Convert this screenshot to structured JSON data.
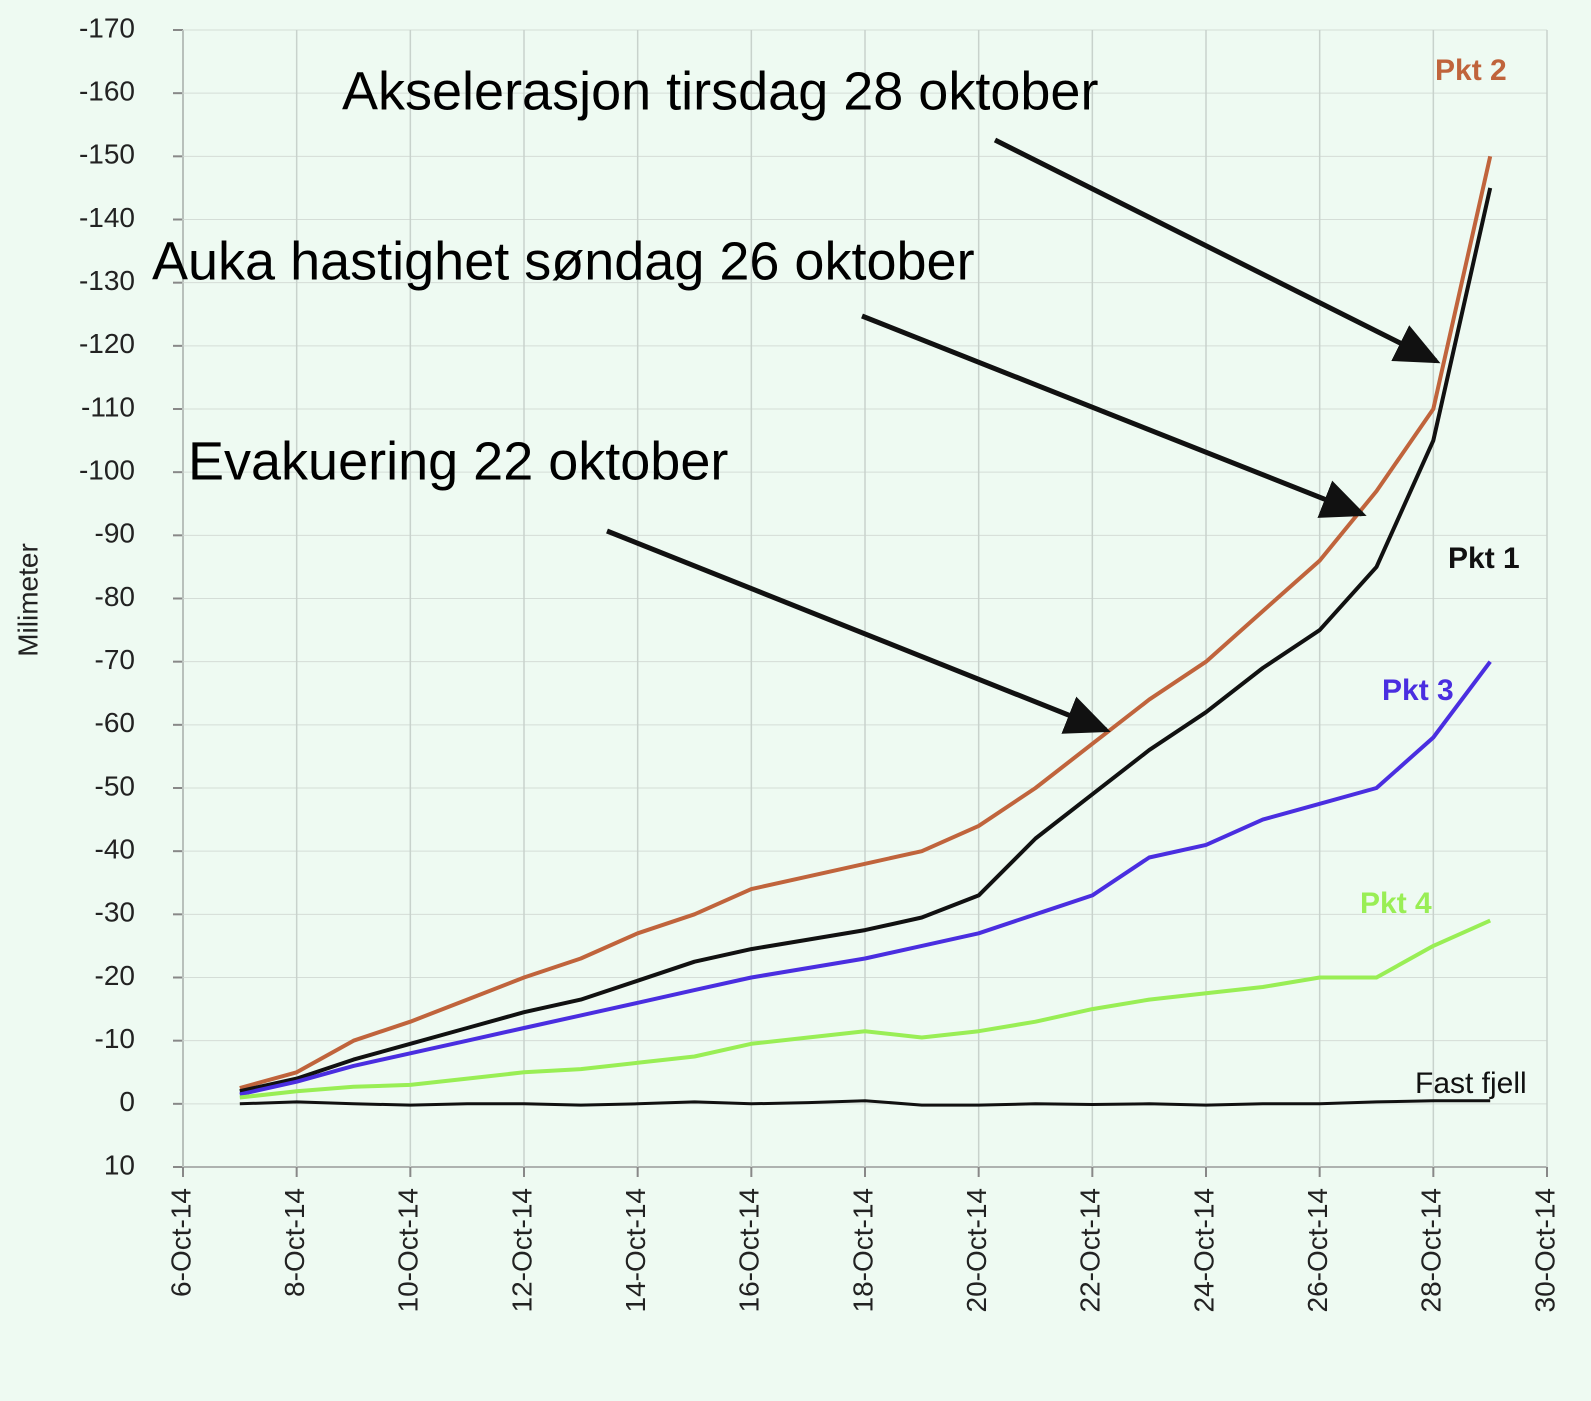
{
  "chart_data": {
    "type": "line",
    "y_label": "Milimeter",
    "x": [
      "2014-10-07",
      "2014-10-08",
      "2014-10-09",
      "2014-10-10",
      "2014-10-11",
      "2014-10-12",
      "2014-10-13",
      "2014-10-14",
      "2014-10-15",
      "2014-10-16",
      "2014-10-17",
      "2014-10-18",
      "2014-10-19",
      "2014-10-20",
      "2014-10-21",
      "2014-10-22",
      "2014-10-23",
      "2014-10-24",
      "2014-10-25",
      "2014-10-26",
      "2014-10-27",
      "2014-10-28",
      "2014-10-29"
    ],
    "series": [
      {
        "name": "Pkt 2",
        "color": "#c0643c",
        "values": [
          -2.5,
          -5,
          -10,
          -13,
          -16.5,
          -20,
          -23,
          -27,
          -30,
          -34,
          -36,
          -38,
          -40,
          -44,
          -50,
          -57,
          -64,
          -70,
          -78,
          -86,
          -97,
          -110,
          -150
        ]
      },
      {
        "name": "Pkt 1",
        "color": "#111111",
        "values": [
          -2,
          -4,
          -7,
          -9.5,
          -12,
          -14.5,
          -16.5,
          -19.5,
          -22.5,
          -24.5,
          -26,
          -27.5,
          -29.5,
          -33,
          -42,
          -49,
          -56,
          -62,
          -69,
          -75,
          -85,
          -105,
          -145
        ]
      },
      {
        "name": "Pkt 3",
        "color": "#4a2ee0",
        "values": [
          -1.5,
          -3.5,
          -6,
          -8,
          -10,
          -12,
          -14,
          -16,
          -18,
          -20,
          -21.5,
          -23,
          -25,
          -27,
          -30,
          -33,
          -39,
          -41,
          -45,
          -47.5,
          -50,
          -58,
          -70
        ]
      },
      {
        "name": "Pkt 4",
        "color": "#99ee55",
        "values": [
          -1,
          -2,
          -2.7,
          -3,
          -4,
          -5,
          -5.5,
          -6.5,
          -7.5,
          -9.5,
          -10.5,
          -11.5,
          -10.5,
          -11.5,
          -13,
          -15,
          -16.5,
          -17.5,
          -18.5,
          -20,
          -20,
          -25,
          -29
        ]
      },
      {
        "name": "Fast fjell",
        "color": "#111111",
        "values": [
          0,
          -0.3,
          0,
          0.2,
          0,
          0,
          0.2,
          0,
          -0.3,
          0,
          -0.2,
          -0.5,
          0.2,
          0.2,
          0,
          0.1,
          0,
          0.2,
          0,
          0,
          -0.3,
          -0.5,
          -0.5
        ]
      }
    ],
    "ylim": [
      10,
      -170
    ],
    "yticks": [
      10,
      0,
      -10,
      -20,
      -30,
      -40,
      -50,
      -60,
      -70,
      -80,
      -90,
      -100,
      -110,
      -120,
      -130,
      -140,
      -150,
      -160,
      -170
    ],
    "xlim": [
      "2014-10-06",
      "2014-10-30"
    ],
    "xticks": [
      {
        "value": "2014-10-06",
        "label": "6-Oct-14"
      },
      {
        "value": "2014-10-08",
        "label": "8-Oct-14"
      },
      {
        "value": "2014-10-10",
        "label": "10-Oct-14"
      },
      {
        "value": "2014-10-12",
        "label": "12-Oct-14"
      },
      {
        "value": "2014-10-14",
        "label": "14-Oct-14"
      },
      {
        "value": "2014-10-16",
        "label": "16-Oct-14"
      },
      {
        "value": "2014-10-18",
        "label": "18-Oct-14"
      },
      {
        "value": "2014-10-20",
        "label": "20-Oct-14"
      },
      {
        "value": "2014-10-22",
        "label": "22-Oct-14"
      },
      {
        "value": "2014-10-24",
        "label": "24-Oct-14"
      },
      {
        "value": "2014-10-26",
        "label": "26-Oct-14"
      },
      {
        "value": "2014-10-28",
        "label": "28-Oct-14"
      },
      {
        "value": "2014-10-30",
        "label": "30-Oct-14"
      }
    ],
    "grid": true,
    "annotations": [
      "Akselerasjon tirsdag 28 oktober",
      "Auka hastighet søndag 26 oktober",
      "Evakuering 22 oktober"
    ]
  }
}
